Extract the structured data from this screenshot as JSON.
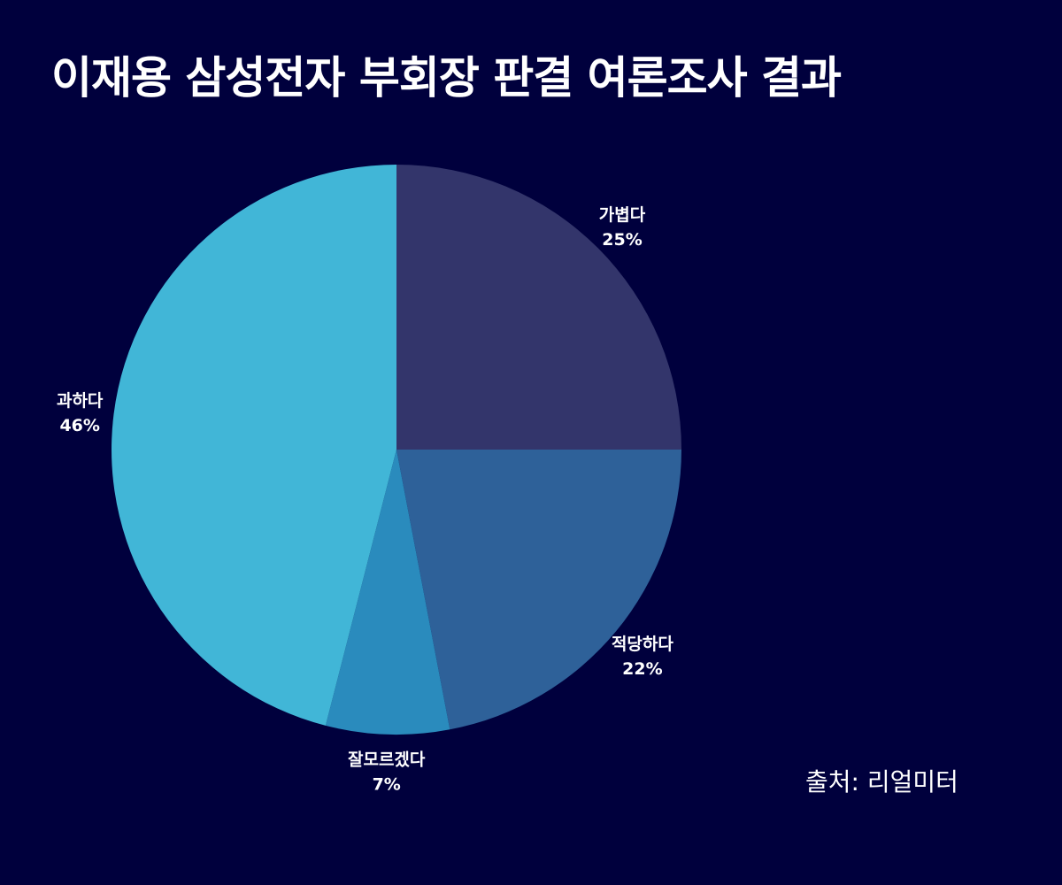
{
  "title": "이재용 삼성전자 부회장 판결 여론조사 결과",
  "source": "출처: 리얼미터",
  "chart_data": {
    "type": "pie",
    "title": "이재용 삼성전자 부회장 판결 여론조사 결과",
    "start_angle_deg": 0,
    "direction": "clockwise",
    "legend": "none",
    "slices": [
      {
        "label": "가볍다",
        "value": 25,
        "value_label": "25%",
        "color": "#33356b"
      },
      {
        "label": "적당하다",
        "value": 22,
        "value_label": "22%",
        "color": "#2e6199"
      },
      {
        "label": "잘모르겠다",
        "value": 7,
        "value_label": "7%",
        "color": "#2a8bbd"
      },
      {
        "label": "과하다",
        "value": 46,
        "value_label": "46%",
        "color": "#41b6d7"
      }
    ]
  }
}
